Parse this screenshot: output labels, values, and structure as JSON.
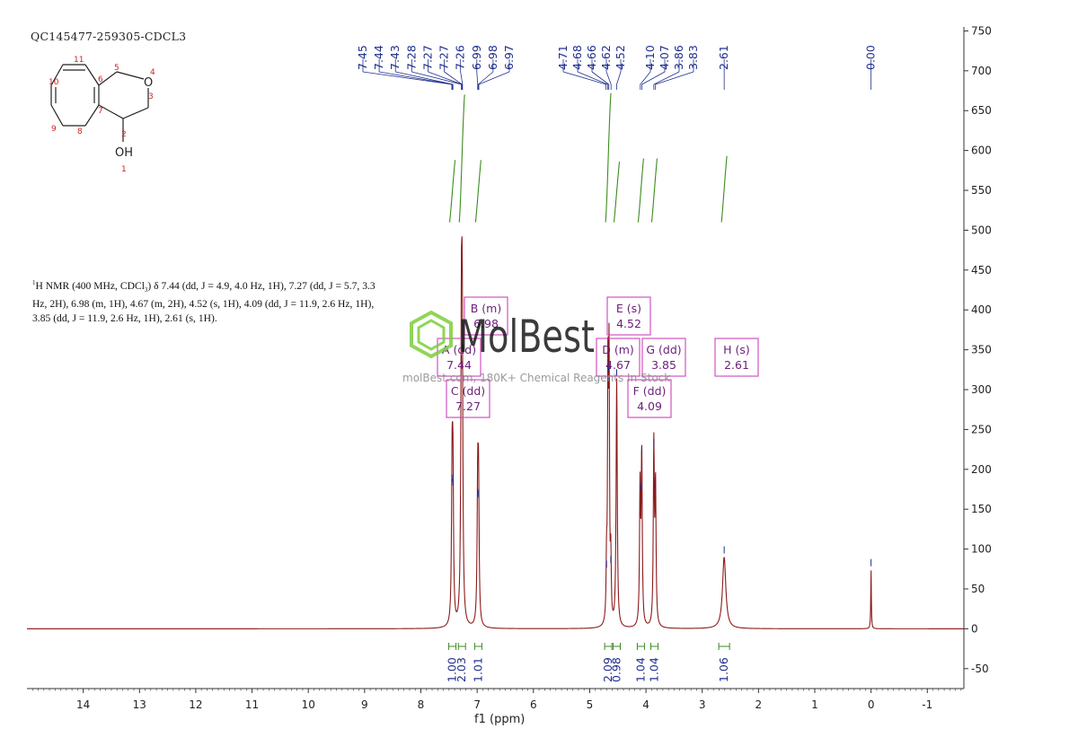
{
  "sample_id": "QC145477-259305-CDCL3",
  "nmr_description": {
    "line1_sup": "1",
    "line1_a": "H NMR (400 MHz, CDCl",
    "line1_sub": "3",
    "line1_b": ") δ 7.44 (dd, J = 4.9, 4.0 Hz, 1H), 7.27 (dd, J = 5.7, 3.3",
    "line2": "Hz, 2H), 6.98 (m, 1H), 4.67 (m, 2H), 4.52 (s, 1H), 4.09 (dd, J = 11.9, 2.6 Hz, 1H),",
    "line3": "3.85 (dd, J = 11.9, 2.6 Hz, 1H), 2.61 (s, 1H)."
  },
  "watermark": {
    "logo_text": "MolBest",
    "tagline": "molBest.com, 180K+ Chemical Reagents In Stock"
  },
  "structure": {
    "atom_numbers": [
      "1",
      "2",
      "3",
      "4",
      "5",
      "6",
      "7",
      "8",
      "9",
      "10",
      "11"
    ],
    "labels": {
      "oxygen": "O",
      "hydroxyl": "OH"
    }
  },
  "colors": {
    "spectrum": "#8b1a1a",
    "peak_labels": "#1f2f8f",
    "integral": "#3c8c1e",
    "multiplet_box": "#cc44bb",
    "multiplet_text": "#6b1f7a",
    "axis": "#333333",
    "atom_number": "#cc2222",
    "watermark_green": "#7ccf3a"
  },
  "chart_data": {
    "type": "line",
    "xlabel": "f1 (ppm)",
    "xlim": [
      15.0,
      -1.65
    ],
    "ylim": [
      -75,
      755
    ],
    "x_ticks": [
      14,
      13,
      12,
      11,
      10,
      9,
      8,
      7,
      6,
      5,
      4,
      3,
      2,
      1,
      0,
      -1
    ],
    "y_ticks": [
      750,
      700,
      650,
      600,
      550,
      500,
      450,
      400,
      350,
      300,
      250,
      200,
      150,
      100,
      50,
      0,
      -50
    ],
    "y_axis_side": "right",
    "baseline": 0,
    "peaks": [
      {
        "ppm": 7.445,
        "height": 180,
        "width": 0.012
      },
      {
        "ppm": 7.43,
        "height": 175,
        "width": 0.012
      },
      {
        "ppm": 7.28,
        "height": 330,
        "width": 0.012
      },
      {
        "ppm": 7.265,
        "height": 345,
        "width": 0.012
      },
      {
        "ppm": 6.99,
        "height": 162,
        "width": 0.012
      },
      {
        "ppm": 6.975,
        "height": 160,
        "width": 0.012
      },
      {
        "ppm": 4.7,
        "height": 72,
        "width": 0.009
      },
      {
        "ppm": 4.675,
        "height": 320,
        "width": 0.009
      },
      {
        "ppm": 4.655,
        "height": 318,
        "width": 0.009
      },
      {
        "ppm": 4.625,
        "height": 78,
        "width": 0.009
      },
      {
        "ppm": 4.52,
        "height": 312,
        "width": 0.012
      },
      {
        "ppm": 4.105,
        "height": 170,
        "width": 0.011
      },
      {
        "ppm": 4.075,
        "height": 215,
        "width": 0.011
      },
      {
        "ppm": 3.86,
        "height": 225,
        "width": 0.011
      },
      {
        "ppm": 3.83,
        "height": 172,
        "width": 0.011
      },
      {
        "ppm": 2.61,
        "height": 90,
        "width": 0.035
      },
      {
        "ppm": 0.0,
        "height": 74,
        "width": 0.006
      }
    ],
    "peak_labels": {
      "group1": [
        "7.45",
        "7.44",
        "7.43",
        "7.28",
        "7.27",
        "7.27",
        "7.26",
        "6.99",
        "6.98",
        "6.97"
      ],
      "group2": [
        "4.71",
        "4.68",
        "4.66",
        "4.62",
        "4.52"
      ],
      "group3": [
        "4.10",
        "4.07",
        "3.86",
        "3.83"
      ],
      "single": [
        "2.61",
        "0.00"
      ]
    },
    "integrals": [
      {
        "ppm": 7.44,
        "value": "1.00",
        "rise_from": 510,
        "rise_to": 588
      },
      {
        "ppm": 7.27,
        "value": "2.03",
        "rise_from": 510,
        "rise_to": 670
      },
      {
        "ppm": 6.98,
        "value": "1.01",
        "rise_from": 510,
        "rise_to": 588
      },
      {
        "ppm": 4.67,
        "value": "2.09",
        "rise_from": 510,
        "rise_to": 672
      },
      {
        "ppm": 4.52,
        "value": "0.98",
        "rise_from": 510,
        "rise_to": 586
      },
      {
        "ppm": 4.09,
        "value": "1.04",
        "rise_from": 510,
        "rise_to": 590
      },
      {
        "ppm": 3.85,
        "value": "1.04",
        "rise_from": 510,
        "rise_to": 590
      },
      {
        "ppm": 2.61,
        "value": "1.06",
        "rise_from": 510,
        "rise_to": 593
      }
    ],
    "multiplets": [
      {
        "letter_line": "A (dd)",
        "shift": "7.44"
      },
      {
        "letter_line": "B (m)",
        "shift": "6.98"
      },
      {
        "letter_line": "C (dd)",
        "shift": "7.27"
      },
      {
        "letter_line": "D (m)",
        "shift": "4.67"
      },
      {
        "letter_line": "E (s)",
        "shift": "4.52"
      },
      {
        "letter_line": "F (dd)",
        "shift": "4.09"
      },
      {
        "letter_line": "G (dd)",
        "shift": "3.85"
      },
      {
        "letter_line": "H (s)",
        "shift": "2.61"
      }
    ]
  }
}
